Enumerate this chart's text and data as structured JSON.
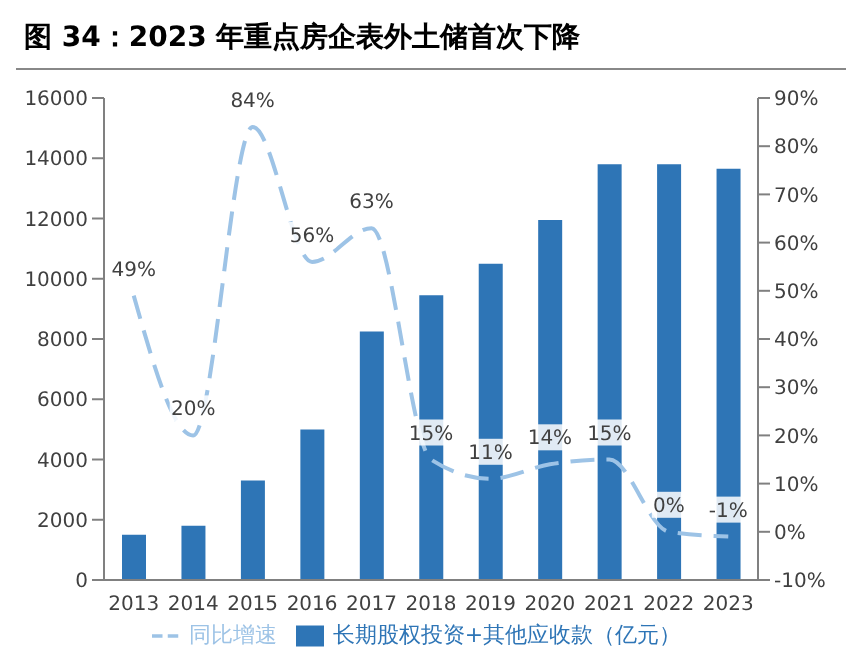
{
  "chart_data": {
    "type": "bar",
    "title": "图 34：2023 年重点房企表外土储首次下降",
    "categories": [
      "2013",
      "2014",
      "2015",
      "2016",
      "2017",
      "2018",
      "2019",
      "2020",
      "2021",
      "2022",
      "2023"
    ],
    "series": [
      {
        "name": "长期股权投资+其他应收款（亿元）",
        "color": "#2e75b6",
        "values": [
          1500,
          1800,
          3300,
          5000,
          8250,
          9450,
          10500,
          11950,
          13800,
          13800,
          13650
        ]
      },
      {
        "name": "同比增速",
        "type": "line",
        "axis": "y2",
        "color": "#9dc3e6",
        "line_style": "dashed",
        "values": [
          49,
          20,
          84,
          56,
          63,
          15,
          11,
          14,
          15,
          0,
          -1
        ],
        "value_labels": [
          "49%",
          "20%",
          "84%",
          "56%",
          "63%",
          "15%",
          "11%",
          "14%",
          "15%",
          "0%",
          "-1%"
        ]
      }
    ],
    "ylim": [
      0,
      16000
    ],
    "yticks": [
      0,
      2000,
      4000,
      6000,
      8000,
      10000,
      12000,
      14000,
      16000
    ],
    "y2lim": [
      -10,
      90
    ],
    "y2ticks": [
      {
        "value": -10,
        "label": "-10%"
      },
      {
        "value": 0,
        "label": "0%"
      },
      {
        "value": 10,
        "label": "10%"
      },
      {
        "value": 20,
        "label": "20%"
      },
      {
        "value": 30,
        "label": "30%"
      },
      {
        "value": 40,
        "label": "40%"
      },
      {
        "value": 50,
        "label": "50%"
      },
      {
        "value": 60,
        "label": "60%"
      },
      {
        "value": 70,
        "label": "70%"
      },
      {
        "value": 80,
        "label": "80%"
      },
      {
        "value": 90,
        "label": "90%"
      }
    ],
    "legend": "bottom",
    "marker": "none"
  }
}
